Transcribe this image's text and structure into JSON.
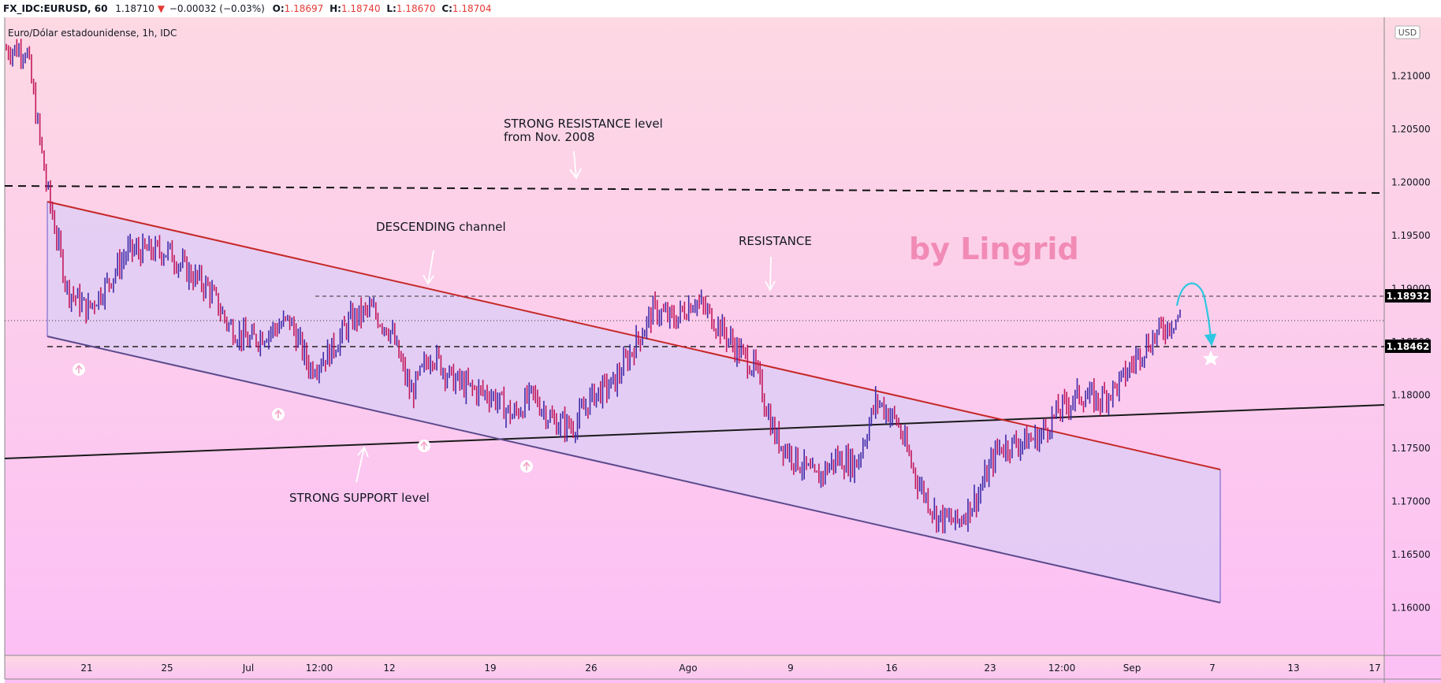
{
  "header": {
    "symbol": "FX_IDC:EURUSD, 60",
    "last": "1.18710",
    "change": "−0.00032 (−0.03%)",
    "open_label": "O:",
    "open": "1.18697",
    "high_label": "H:",
    "high": "1.18740",
    "low_label": "L:",
    "low": "1.18670",
    "close_label": "C:",
    "close": "1.18704"
  },
  "legend_title": "Euro/Dólar estadounidense, 1h, IDC",
  "currency": "USD",
  "brand": "by Lingrid",
  "annotations": {
    "strong_resistance_1": "STRONG RESISTANCE level",
    "strong_resistance_2": "from Nov. 2008",
    "descending_channel": "DESCENDING channel",
    "resistance": "RESISTANCE",
    "strong_support": "STRONG SUPPORT level"
  },
  "colors": {
    "bg_top": "#fdd9e3",
    "bg_bottom": "#fcc0f5",
    "channel_fill": "#dccdf5",
    "upper_line": "#c62828",
    "lower_line": "#5b4a8c",
    "support_line": "#1a1a1a",
    "candles_down": "#c2185b",
    "candles_up": "#3f2aa8",
    "cyan_arrow": "#2ec6e0",
    "tag": "#000000"
  },
  "chart_data": {
    "type": "line",
    "title": "Euro/Dólar estadounidense, 1h, IDC",
    "xlabel": "",
    "ylabel": "",
    "ylim": [
      1.1555,
      1.2155
    ],
    "x_ticks": [
      "21",
      "25",
      "Jul",
      "12:00",
      "12",
      "19",
      "26",
      "Ago",
      "9",
      "16",
      "23",
      "12:00",
      "Sep",
      "7",
      "13",
      "17"
    ],
    "y_ticks": [
      "1.21000",
      "1.20500",
      "1.20000",
      "1.19500",
      "1.19000",
      "1.18500",
      "1.18000",
      "1.17500",
      "1.17000",
      "1.16500",
      "1.16000"
    ],
    "price_tags": [
      "1.18932",
      "1.18462"
    ],
    "levels": {
      "strong_resistance": 1.1994,
      "resistance": 1.1893,
      "support_dashed": 1.1846,
      "current": 1.1871
    },
    "series": [
      {
        "x": [
          "Jun 15",
          "Jun 16",
          "Jun 17",
          "Jun 18",
          "Jun 21",
          "Jun 22",
          "Jun 23",
          "Jun 24",
          "Jun 25",
          "Jun 28",
          "Jun 29",
          "Jun 30",
          "Jul 1",
          "Jul 2",
          "Jul 5",
          "Jul 6",
          "Jul 7",
          "Jul 8",
          "Jul 9",
          "Jul 12",
          "Jul 13",
          "Jul 14",
          "Jul 15",
          "Jul 16",
          "Jul 19",
          "Jul 20",
          "Jul 21",
          "Jul 22",
          "Jul 23",
          "Jul 26",
          "Jul 27",
          "Jul 28",
          "Jul 29",
          "Jul 30",
          "Aug 2",
          "Aug 3",
          "Aug 4",
          "Aug 5",
          "Aug 6",
          "Aug 9",
          "Aug 10",
          "Aug 11",
          "Aug 12",
          "Aug 13",
          "Aug 16",
          "Aug 17",
          "Aug 18",
          "Aug 19",
          "Aug 20",
          "Aug 23",
          "Aug 24",
          "Aug 25",
          "Aug 26",
          "Aug 27",
          "Aug 30",
          "Aug 31",
          "Sep 1",
          "Sep 2",
          "Sep 3"
        ],
        "values": [
          1.2125,
          1.2125,
          1.1995,
          1.19,
          1.188,
          1.1905,
          1.1935,
          1.1935,
          1.1935,
          1.1915,
          1.19,
          1.1865,
          1.185,
          1.186,
          1.187,
          1.1825,
          1.184,
          1.187,
          1.188,
          1.186,
          1.18,
          1.184,
          1.1815,
          1.1805,
          1.18,
          1.178,
          1.18,
          1.1775,
          1.177,
          1.18,
          1.181,
          1.1845,
          1.188,
          1.187,
          1.189,
          1.187,
          1.1845,
          1.1825,
          1.176,
          1.174,
          1.172,
          1.174,
          1.1735,
          1.1795,
          1.1775,
          1.172,
          1.1685,
          1.168,
          1.1705,
          1.175,
          1.1755,
          1.176,
          1.1785,
          1.18,
          1.1795,
          1.181,
          1.184,
          1.186,
          1.1875
        ]
      }
    ]
  }
}
